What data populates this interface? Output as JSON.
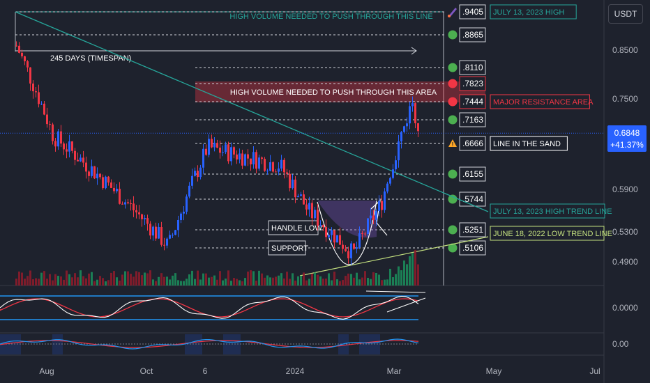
{
  "currency": "USDT",
  "current_price": "0.6848",
  "current_change": "+41.37%",
  "colors": {
    "background": "#1e222d",
    "up": "#2962ff",
    "down": "#f23645",
    "trend": "#26a69a",
    "support": "#c4e17f",
    "level_green": "#4caf50",
    "level_red": "#f23645",
    "level_warn": "#ffa726",
    "resistance_zone": "#f23645",
    "cup": "#7e57c2"
  },
  "chart_data": [
    {
      "type": "candlestick",
      "title": "",
      "x_ticks": [
        "Aug",
        "Oct",
        "6",
        "2024",
        "Mar",
        "May",
        "Jul"
      ],
      "y_ticks": [
        "0.8500",
        "0.7500",
        "0.6848",
        "0.5900",
        "0.5300",
        "0.4900"
      ],
      "ylim": [
        0.45,
        0.95
      ],
      "scale": "log",
      "grid": false,
      "price_anchor_points": [
        {
          "label": "Jul 13 2023",
          "close": 0.86
        },
        {
          "label": "Aug 2023",
          "close": 0.68
        },
        {
          "label": "Oct 2023",
          "close": 0.51
        },
        {
          "label": "Nov 6 2023",
          "close": 0.66
        },
        {
          "label": "Dec 2023",
          "close": 0.63
        },
        {
          "label": "Jan 2024",
          "close": 0.56
        },
        {
          "label": "Feb 2024",
          "close": 0.5
        },
        {
          "label": "Feb 2024 late",
          "close": 0.57
        },
        {
          "label": "Mar 2024",
          "close": 0.7444
        },
        {
          "label": "Mar 2024 last",
          "close": 0.6848
        }
      ],
      "levels": [
        {
          "value": ".9405",
          "status": "rocket",
          "note": "JULY 13, 2023 HIGH"
        },
        {
          "value": ".8865",
          "status": "green",
          "note": ""
        },
        {
          "value": ".8110",
          "status": "green",
          "note": ""
        },
        {
          "value": ".7823",
          "status": "red",
          "note": ""
        },
        {
          "value": ".7444",
          "status": "red",
          "note": "MAJOR RESISTANCE AREA"
        },
        {
          "value": ".7163",
          "status": "green",
          "note": ""
        },
        {
          "value": ".6666",
          "status": "warning",
          "note": "LINE IN THE SAND"
        },
        {
          "value": ".6155",
          "status": "green",
          "note": ""
        },
        {
          "value": ".5744",
          "status": "green",
          "note": ""
        },
        {
          "value": ".5251",
          "status": "green",
          "note": ""
        },
        {
          "value": ".5106",
          "status": "green",
          "note": ""
        }
      ],
      "annotations": {
        "top_line": "HIGH VOLUME NEEDED TO PUSH THROUGH THIS LINE",
        "timespan": "245 DAYS (TIMESPAN)",
        "zone": "HIGH VOLUME NEEDED TO PUSH THROUGH THIS AREA",
        "handle_low": "HANDLE LOW",
        "support": "SUPPORT",
        "high_trend_line": "JULY 13, 2023 HIGH TREND LINE",
        "low_trend_line": "JUNE 18, 2022 LOW TREND LINE"
      }
    },
    {
      "type": "line",
      "title": "",
      "y_ticks": [
        "0.0000"
      ],
      "series": []
    },
    {
      "type": "line",
      "title": "",
      "y_ticks": [
        "0.00"
      ],
      "series": []
    }
  ]
}
